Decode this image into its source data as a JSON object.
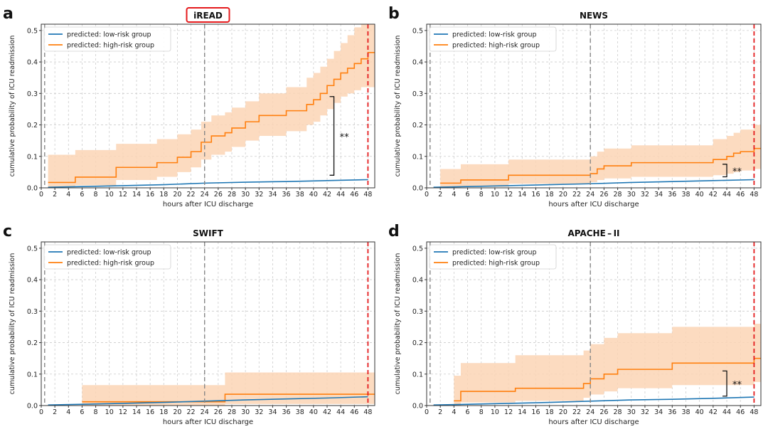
{
  "colors": {
    "low": "#1f77b4",
    "high": "#ff7f0e",
    "band": "#fcd5b5",
    "grid": "#cccccc",
    "marker24": "#888888",
    "marker48": "#e41a1c",
    "highlight_box": "#e41a1c"
  },
  "chart_data": [
    {
      "panel_letter": "a",
      "title": "iREAD",
      "title_boxed": true,
      "type": "line",
      "xlabel": "hours after ICU discharge",
      "ylabel": "cumulative probability of ICU readmission",
      "xlim": [
        0,
        49
      ],
      "ylim": [
        0,
        0.52
      ],
      "xticks": [
        0,
        2,
        4,
        6,
        8,
        10,
        12,
        14,
        16,
        18,
        20,
        22,
        24,
        26,
        28,
        30,
        32,
        34,
        36,
        38,
        40,
        42,
        44,
        46,
        48
      ],
      "yticks": [
        0.0,
        0.1,
        0.2,
        0.3,
        0.4,
        0.5
      ],
      "ytick_labels": [
        "0.0",
        "0.1",
        "0.2",
        "0.3",
        "0.4",
        "0.5"
      ],
      "grid": true,
      "legend_position": "top-left",
      "vlines": [
        24,
        48
      ],
      "series": [
        {
          "name": "predicted: low-risk group",
          "x": [
            1,
            6,
            12,
            18,
            24,
            30,
            36,
            42,
            48
          ],
          "y": [
            0.002,
            0.004,
            0.007,
            0.01,
            0.015,
            0.018,
            0.02,
            0.023,
            0.026
          ]
        },
        {
          "name": "predicted: high-risk group",
          "x": [
            1,
            5,
            11,
            17,
            20,
            22,
            23.5,
            25,
            27,
            28,
            30,
            32,
            36,
            39,
            40,
            41,
            42,
            43,
            44,
            45,
            46,
            47,
            48,
            49
          ],
          "y": [
            0.017,
            0.034,
            0.065,
            0.08,
            0.097,
            0.115,
            0.145,
            0.165,
            0.175,
            0.19,
            0.21,
            0.23,
            0.245,
            0.265,
            0.28,
            0.3,
            0.325,
            0.345,
            0.365,
            0.38,
            0.395,
            0.41,
            0.43,
            0.43
          ],
          "band_lower": [
            0.002,
            0.008,
            0.025,
            0.035,
            0.05,
            0.065,
            0.09,
            0.105,
            0.115,
            0.13,
            0.15,
            0.165,
            0.18,
            0.2,
            0.21,
            0.23,
            0.25,
            0.27,
            0.29,
            0.3,
            0.31,
            0.32,
            0.32,
            0.32
          ],
          "band_upper": [
            0.105,
            0.12,
            0.14,
            0.155,
            0.17,
            0.185,
            0.21,
            0.23,
            0.24,
            0.255,
            0.275,
            0.3,
            0.32,
            0.35,
            0.365,
            0.385,
            0.41,
            0.435,
            0.46,
            0.485,
            0.51,
            0.52,
            0.52,
            0.52
          ]
        }
      ],
      "significance": {
        "label": "**",
        "x": 43,
        "y_low": 0.04,
        "y_high": 0.29
      }
    },
    {
      "panel_letter": "b",
      "title": "NEWS",
      "title_boxed": false,
      "type": "line",
      "xlabel": "hours after ICU discharge",
      "ylabel": "cumulative probability of ICU readmission",
      "xlim": [
        0,
        49
      ],
      "ylim": [
        0,
        0.52
      ],
      "xticks": [
        0,
        2,
        4,
        6,
        8,
        10,
        12,
        14,
        16,
        18,
        20,
        22,
        24,
        26,
        28,
        30,
        32,
        34,
        36,
        38,
        40,
        42,
        44,
        46,
        48
      ],
      "yticks": [
        0.0,
        0.1,
        0.2,
        0.3,
        0.4,
        0.5
      ],
      "ytick_labels": [
        "0.0",
        "0.1",
        "0.2",
        "0.3",
        "0.4",
        "0.5"
      ],
      "grid": true,
      "legend_position": "top-left",
      "vlines": [
        24,
        48
      ],
      "series": [
        {
          "name": "predicted: low-risk group",
          "x": [
            1,
            6,
            12,
            18,
            24,
            30,
            36,
            42,
            48
          ],
          "y": [
            0.002,
            0.004,
            0.007,
            0.01,
            0.013,
            0.017,
            0.02,
            0.023,
            0.026
          ]
        },
        {
          "name": "predicted: high-risk group",
          "x": [
            2,
            5,
            12,
            24,
            25,
            26,
            30,
            42,
            44,
            45,
            46,
            48,
            49
          ],
          "y": [
            0.015,
            0.025,
            0.04,
            0.045,
            0.06,
            0.07,
            0.08,
            0.09,
            0.1,
            0.11,
            0.115,
            0.125,
            0.125
          ],
          "band_lower": [
            0.0,
            0.003,
            0.013,
            0.018,
            0.025,
            0.03,
            0.035,
            0.04,
            0.045,
            0.05,
            0.055,
            0.06,
            0.06
          ],
          "band_upper": [
            0.06,
            0.075,
            0.09,
            0.1,
            0.115,
            0.125,
            0.135,
            0.155,
            0.165,
            0.175,
            0.185,
            0.2,
            0.2
          ]
        }
      ],
      "significance": {
        "label": "**",
        "x": 44,
        "y_low": 0.035,
        "y_high": 0.075
      }
    },
    {
      "panel_letter": "c",
      "title": "SWIFT",
      "title_boxed": false,
      "type": "line",
      "xlabel": "hours after ICU discharge",
      "ylabel": "cumulative probability of ICU readmission",
      "xlim": [
        0,
        49
      ],
      "ylim": [
        0,
        0.52
      ],
      "xticks": [
        0,
        2,
        4,
        6,
        8,
        10,
        12,
        14,
        16,
        18,
        20,
        22,
        24,
        26,
        28,
        30,
        32,
        34,
        36,
        38,
        40,
        42,
        44,
        46,
        48
      ],
      "yticks": [
        0.0,
        0.1,
        0.2,
        0.3,
        0.4,
        0.5
      ],
      "ytick_labels": [
        "0.0",
        "0.1",
        "0.2",
        "0.3",
        "0.4",
        "0.5"
      ],
      "grid": true,
      "legend_position": "top-left",
      "vlines": [
        24,
        48
      ],
      "series": [
        {
          "name": "predicted: low-risk group",
          "x": [
            1,
            6,
            12,
            18,
            24,
            30,
            36,
            42,
            48
          ],
          "y": [
            0.002,
            0.004,
            0.007,
            0.01,
            0.014,
            0.018,
            0.021,
            0.024,
            0.028
          ]
        },
        {
          "name": "predicted: high-risk group",
          "x": [
            6,
            27,
            48,
            49
          ],
          "y": [
            0.012,
            0.036,
            0.036,
            0.036
          ],
          "band_lower": [
            0.0,
            0.005,
            0.005,
            0.005
          ],
          "band_upper": [
            0.065,
            0.105,
            0.105,
            0.105
          ]
        }
      ]
    },
    {
      "panel_letter": "d",
      "title": "APACHE – II",
      "title_boxed": false,
      "type": "line",
      "xlabel": "hours after ICU discharge",
      "ylabel": "cumulative probability of ICU readmission",
      "xlim": [
        0,
        49
      ],
      "ylim": [
        0,
        0.52
      ],
      "xticks": [
        0,
        2,
        4,
        6,
        8,
        10,
        12,
        14,
        16,
        18,
        20,
        22,
        24,
        26,
        28,
        30,
        32,
        34,
        36,
        38,
        40,
        42,
        44,
        46,
        48
      ],
      "yticks": [
        0.0,
        0.1,
        0.2,
        0.3,
        0.4,
        0.5
      ],
      "ytick_labels": [
        "0.0",
        "0.1",
        "0.2",
        "0.3",
        "0.4",
        "0.5"
      ],
      "grid": true,
      "legend_position": "top-left",
      "vlines": [
        24,
        48
      ],
      "series": [
        {
          "name": "predicted: low-risk group",
          "x": [
            1,
            6,
            12,
            18,
            24,
            30,
            36,
            42,
            48
          ],
          "y": [
            0.002,
            0.004,
            0.007,
            0.01,
            0.014,
            0.018,
            0.02,
            0.023,
            0.027
          ]
        },
        {
          "name": "predicted: high-risk group",
          "x": [
            4,
            5,
            13,
            23,
            24,
            26,
            28,
            36,
            48,
            49
          ],
          "y": [
            0.015,
            0.045,
            0.055,
            0.07,
            0.085,
            0.1,
            0.115,
            0.135,
            0.15,
            0.15
          ],
          "band_lower": [
            0.0,
            0.01,
            0.015,
            0.025,
            0.035,
            0.045,
            0.055,
            0.065,
            0.075,
            0.075
          ],
          "band_upper": [
            0.095,
            0.135,
            0.16,
            0.175,
            0.195,
            0.215,
            0.23,
            0.25,
            0.26,
            0.26
          ]
        }
      ],
      "significance": {
        "label": "**",
        "x": 44,
        "y_low": 0.03,
        "y_high": 0.11
      }
    }
  ]
}
